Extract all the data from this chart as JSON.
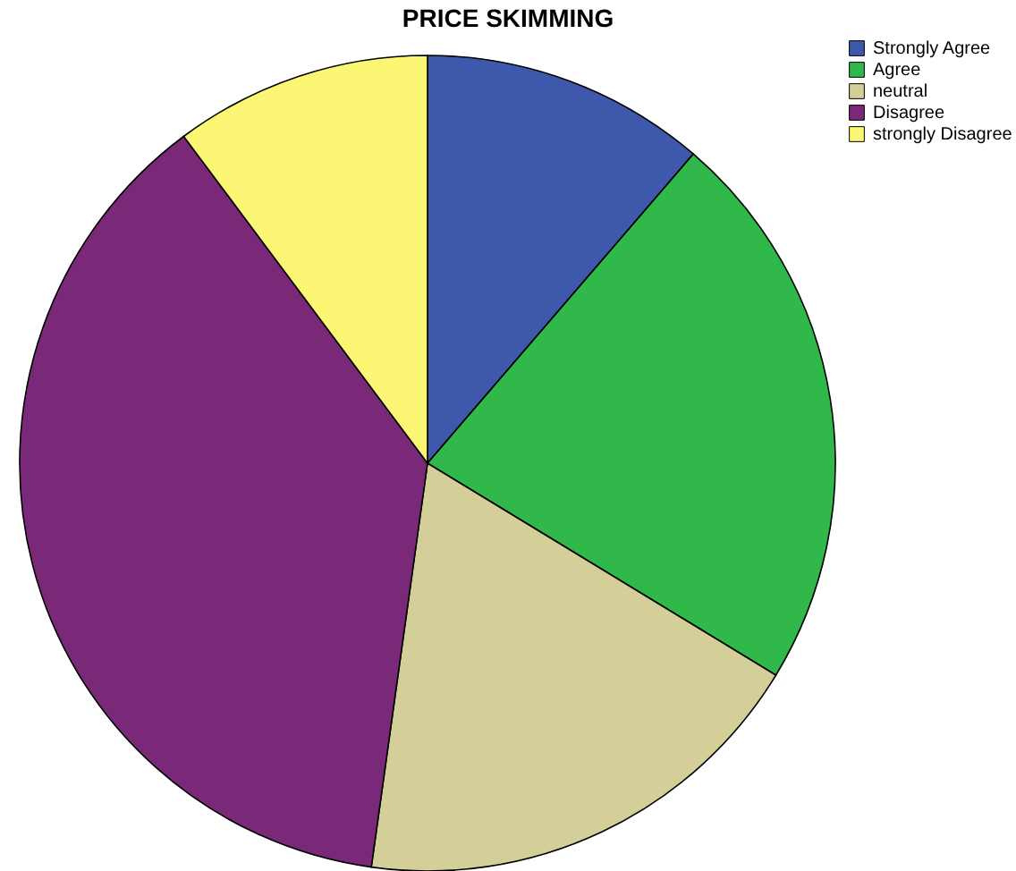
{
  "chart_data": {
    "type": "pie",
    "title": "PRICE SKIMMING",
    "categories": [
      "Strongly Agree",
      "Agree",
      "neutral",
      "Disagree",
      "strongly Disagree"
    ],
    "values": [
      11.3,
      22.4,
      18.5,
      37.6,
      10.2
    ],
    "colors": [
      "#3e59ab",
      "#30b84a",
      "#d4cf98",
      "#7a2878",
      "#fbf774"
    ],
    "legend": "top right"
  }
}
